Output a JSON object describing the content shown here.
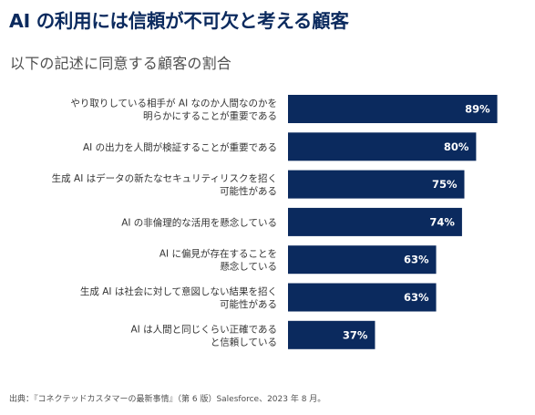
{
  "title": "AI の利用には信頼が不可欠と考える顧客",
  "subtitle": "以下の記述に同意する顧客の割合",
  "source": "出典：『コネクテッドカスタマーの最新事情』（第 6 版）Salesforce、2023 年 8 月。",
  "colors": {
    "bar": "#0b2a5e",
    "bar_label": "#ffffff",
    "category_text": "#333333",
    "title": "#0b2a5e"
  },
  "chart_data": {
    "type": "bar",
    "orientation": "horizontal",
    "title": "",
    "xlabel": "",
    "ylabel": "",
    "xlim": [
      0,
      100
    ],
    "grid": false,
    "categories": [
      [
        "やり取りしている相手が AI なのか人間なのかを",
        "明らかにすることが重要である"
      ],
      [
        "AI の出力を人間が検証することが重要である"
      ],
      [
        "生成 AI はデータの新たなセキュリティリスクを招く",
        "可能性がある"
      ],
      [
        "AI の非倫理的な活用を懸念している"
      ],
      [
        "AI に偏見が存在することを",
        "懸念している"
      ],
      [
        "生成 AI は社会に対して意図しない結果を招く",
        "可能性がある"
      ],
      [
        "AI は人間と同じくらい正確である",
        "と信頼している"
      ]
    ],
    "values": [
      89,
      80,
      75,
      74,
      63,
      63,
      37
    ],
    "value_labels": [
      "89%",
      "80%",
      "75%",
      "74%",
      "63%",
      "63%",
      "37%"
    ]
  }
}
